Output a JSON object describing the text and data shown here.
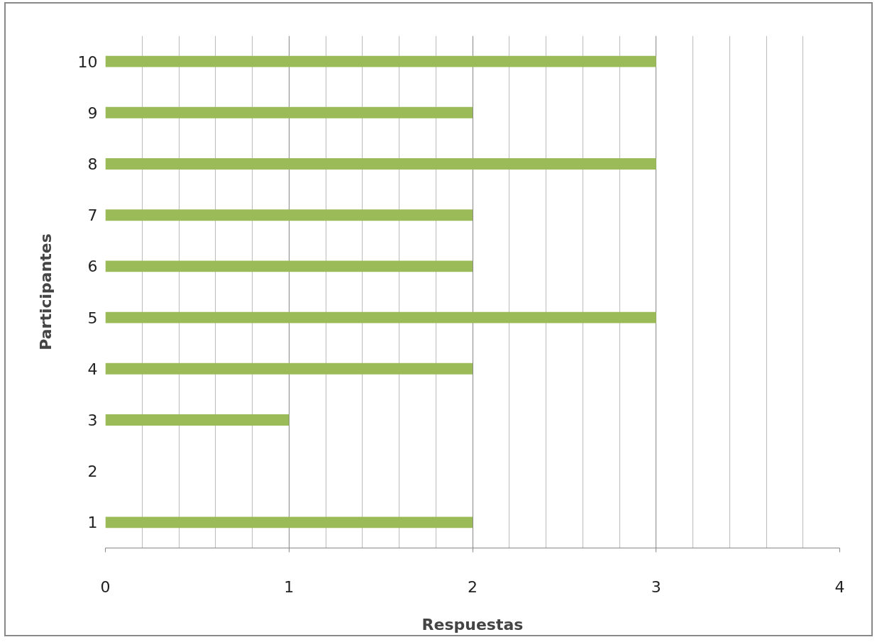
{
  "chart_data": {
    "type": "bar",
    "orientation": "horizontal",
    "xlabel": "Respuestas",
    "ylabel": "Participantes",
    "categories": [
      "10",
      "9",
      "8",
      "7",
      "6",
      "5",
      "4",
      "3",
      "2",
      "1"
    ],
    "values": [
      3,
      2,
      3,
      2,
      2,
      3,
      2,
      1,
      0,
      2
    ],
    "color": "#9bbb59",
    "xlim": [
      0,
      4
    ],
    "xticks": [
      0,
      1,
      2,
      3,
      4
    ],
    "grid": "x"
  }
}
